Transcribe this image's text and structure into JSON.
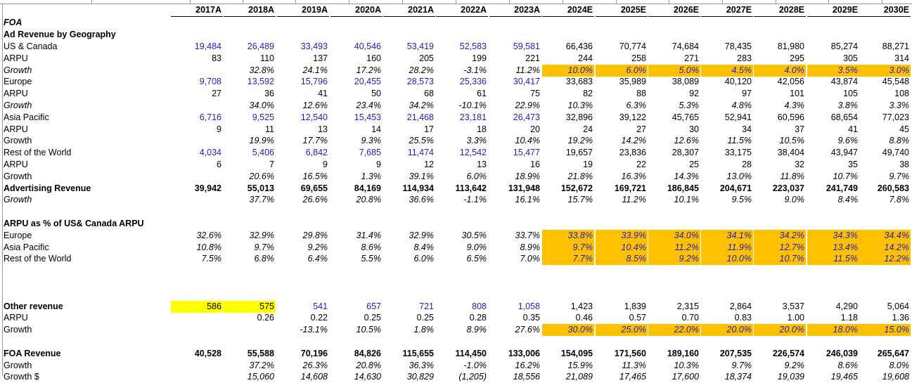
{
  "years": [
    "2017A",
    "2018A",
    "2019A",
    "2020A",
    "2021A",
    "2022A",
    "2023A",
    "2024E",
    "2025E",
    "2026E",
    "2027E",
    "2028E",
    "2029E",
    "2030E"
  ],
  "sections": {
    "foa": "FOA",
    "ad_revenue_by_geo": "Ad Revenue by Geography"
  },
  "highlight_colors": {
    "forecast_input": "#ffc000",
    "flag": "#ffff00",
    "historical_input_text": "#1f1fbf"
  },
  "rows": [
    {
      "label": "US & Canada",
      "values": [
        "19,484",
        "26,489",
        "33,493",
        "40,546",
        "53,419",
        "52,583",
        "59,581",
        "66,436",
        "70,774",
        "74,684",
        "78,435",
        "81,980",
        "85,274",
        "88,271"
      ]
    },
    {
      "label": "ARPU",
      "values": [
        "83",
        "110",
        "137",
        "160",
        "205",
        "199",
        "221",
        "244",
        "258",
        "271",
        "283",
        "295",
        "305",
        "314"
      ]
    },
    {
      "label": "Growth",
      "values": [
        "",
        "32.8%",
        "24.1%",
        "17.2%",
        "28.2%",
        "-3.1%",
        "11.2%",
        "10.0%",
        "6.0%",
        "5.0%",
        "4.5%",
        "4.0%",
        "3.5%",
        "3.0%"
      ]
    },
    {
      "label": "Europe",
      "values": [
        "9,708",
        "13,592",
        "15,796",
        "20,455",
        "28,573",
        "25,336",
        "30,417",
        "33,683",
        "35,989",
        "38,089",
        "40,120",
        "42,056",
        "43,874",
        "45,548"
      ]
    },
    {
      "label": "ARPU",
      "values": [
        "27",
        "36",
        "41",
        "50",
        "68",
        "61",
        "75",
        "82",
        "88",
        "92",
        "97",
        "101",
        "105",
        "108"
      ]
    },
    {
      "label": "Growth",
      "values": [
        "",
        "34.0%",
        "12.6%",
        "23.4%",
        "34.2%",
        "-10.1%",
        "22.9%",
        "10.3%",
        "6.3%",
        "5.3%",
        "4.8%",
        "4.3%",
        "3.8%",
        "3.3%"
      ]
    },
    {
      "label": "Asia Pacific",
      "values": [
        "6,716",
        "9,525",
        "12,540",
        "15,453",
        "21,468",
        "23,181",
        "26,473",
        "32,896",
        "39,122",
        "45,765",
        "52,941",
        "60,596",
        "68,654",
        "77,023"
      ]
    },
    {
      "label": "ARPU",
      "values": [
        "9",
        "11",
        "13",
        "14",
        "17",
        "18",
        "20",
        "24",
        "27",
        "30",
        "34",
        "37",
        "41",
        "45"
      ]
    },
    {
      "label": "Growth",
      "values": [
        "",
        "19.9%",
        "17.7%",
        "9.3%",
        "25.5%",
        "3.3%",
        "10.4%",
        "19.2%",
        "14.2%",
        "12.6%",
        "11.5%",
        "10.5%",
        "9.6%",
        "8.8%"
      ]
    },
    {
      "label": "Rest of the World",
      "values": [
        "4,034",
        "5,406",
        "6,842",
        "7,685",
        "11,474",
        "12,542",
        "15,477",
        "19,657",
        "23,836",
        "28,307",
        "33,175",
        "38,404",
        "43,947",
        "49,740"
      ]
    },
    {
      "label": "ARPU",
      "values": [
        "6",
        "7",
        "9",
        "9",
        "12",
        "13",
        "16",
        "19",
        "22",
        "25",
        "28",
        "32",
        "35",
        "38"
      ]
    },
    {
      "label": "Growth",
      "values": [
        "",
        "20.6%",
        "16.5%",
        "1.3%",
        "39.1%",
        "6.0%",
        "18.9%",
        "21.8%",
        "16.3%",
        "14.3%",
        "13.0%",
        "11.8%",
        "10.7%",
        "9.7%"
      ]
    },
    {
      "label": "Advertising Revenue",
      "values": [
        "39,942",
        "55,013",
        "69,655",
        "84,169",
        "114,934",
        "113,642",
        "131,948",
        "152,672",
        "169,721",
        "186,845",
        "204,671",
        "223,037",
        "241,749",
        "260,583"
      ]
    },
    {
      "label": "Growth",
      "values": [
        "",
        "37.7%",
        "26.6%",
        "20.8%",
        "36.6%",
        "-1.1%",
        "16.1%",
        "15.7%",
        "11.2%",
        "10.1%",
        "9.5%",
        "9.0%",
        "8.4%",
        "7.8%"
      ]
    },
    {
      "label": "",
      "values": [
        "",
        "",
        "",
        "",
        "",
        "",
        "",
        "",
        "",
        "",
        "",
        "",
        "",
        ""
      ]
    },
    {
      "label": "ARPU as % of US& Canada ARPU",
      "values": [
        "",
        "",
        "",
        "",
        "",
        "",
        "",
        "",
        "",
        "",
        "",
        "",
        "",
        ""
      ]
    },
    {
      "label": "Europe",
      "values": [
        "32.6%",
        "32.9%",
        "29.8%",
        "31.4%",
        "32.9%",
        "30.5%",
        "33.7%",
        "33.8%",
        "33.9%",
        "34.0%",
        "34.1%",
        "34.2%",
        "34.3%",
        "34.4%"
      ]
    },
    {
      "label": "Asia Pacific",
      "values": [
        "10.8%",
        "9.7%",
        "9.2%",
        "8.6%",
        "8.4%",
        "9.0%",
        "8.9%",
        "9.7%",
        "10.4%",
        "11.2%",
        "11.9%",
        "12.7%",
        "13.4%",
        "14.2%"
      ]
    },
    {
      "label": "Rest of the World",
      "values": [
        "7.5%",
        "6.8%",
        "6.4%",
        "5.5%",
        "6.0%",
        "6.5%",
        "7.0%",
        "7.7%",
        "8.5%",
        "9.2%",
        "10.0%",
        "10.7%",
        "11.5%",
        "12.2%"
      ]
    },
    {
      "label": "",
      "values": [
        "",
        "",
        "",
        "",
        "",
        "",
        "",
        "",
        "",
        "",
        "",
        "",
        "",
        ""
      ]
    },
    {
      "label": "",
      "values": [
        "",
        "",
        "",
        "",
        "",
        "",
        "",
        "",
        "",
        "",
        "",
        "",
        "",
        ""
      ]
    },
    {
      "label": "",
      "values": [
        "",
        "",
        "",
        "",
        "",
        "",
        "",
        "",
        "",
        "",
        "",
        "",
        "",
        ""
      ]
    },
    {
      "label": "Other revenue",
      "values": [
        "586",
        "575",
        "541",
        "657",
        "721",
        "808",
        "1,058",
        "1,423",
        "1,839",
        "2,315",
        "2,864",
        "3,537",
        "4,290",
        "5,064"
      ]
    },
    {
      "label": "ARPU",
      "values": [
        "",
        "0.26",
        "0.22",
        "0.25",
        "0.25",
        "0.28",
        "0.35",
        "0.46",
        "0.57",
        "0.70",
        "0.83",
        "1.00",
        "1.18",
        "1.36"
      ]
    },
    {
      "label": "Growth",
      "values": [
        "",
        "",
        "-13.1%",
        "10.5%",
        "1.8%",
        "8.9%",
        "27.6%",
        "30.0%",
        "25.0%",
        "22.0%",
        "20.0%",
        "20.0%",
        "18.0%",
        "15.0%"
      ]
    },
    {
      "label": "",
      "values": [
        "",
        "",
        "",
        "",
        "",
        "",
        "",
        "",
        "",
        "",
        "",
        "",
        "",
        ""
      ]
    },
    {
      "label": "FOA Revenue",
      "values": [
        "40,528",
        "55,588",
        "70,196",
        "84,826",
        "115,655",
        "114,450",
        "133,006",
        "154,095",
        "171,560",
        "189,160",
        "207,535",
        "226,574",
        "246,039",
        "265,647"
      ]
    },
    {
      "label": "Growth",
      "values": [
        "",
        "37.2%",
        "26.3%",
        "20.8%",
        "36.3%",
        "-1.0%",
        "16.2%",
        "15.9%",
        "11.3%",
        "10.3%",
        "9.7%",
        "9.2%",
        "8.6%",
        "8.0%"
      ]
    },
    {
      "label": "Growth $",
      "values": [
        "",
        "15,060",
        "14,608",
        "14,630",
        "30,829",
        "(1,205)",
        "18,556",
        "21,089",
        "17,465",
        "17,600",
        "18,374",
        "19,039",
        "19,465",
        "19,608"
      ]
    }
  ]
}
